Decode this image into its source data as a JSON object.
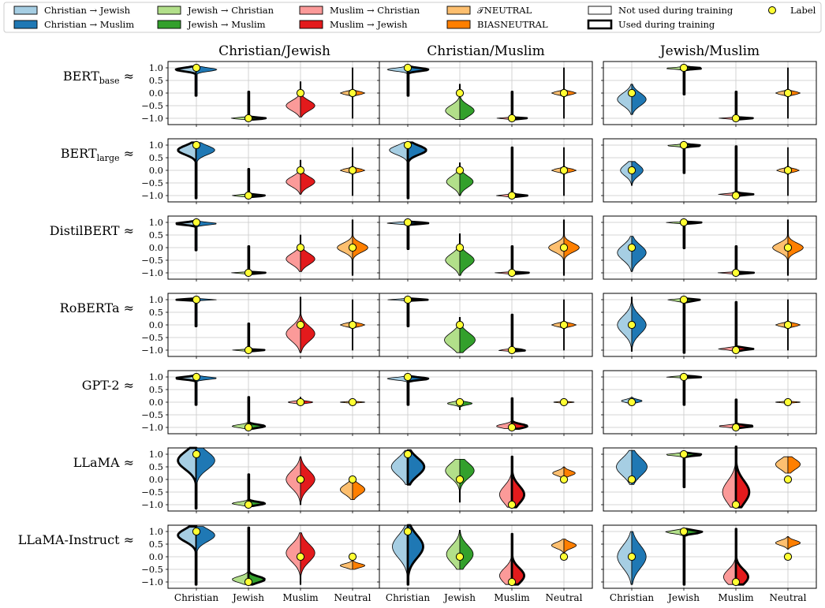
{
  "legend": {
    "entries": [
      {
        "key": "cj",
        "label": "Christian → Jewish",
        "color": "#a6cee3",
        "kind": "patch"
      },
      {
        "key": "cm",
        "label": "Christian → Muslim",
        "color": "#1f78b4",
        "kind": "patch"
      },
      {
        "key": "jc",
        "label": "Jewish → Christian",
        "color": "#b2df8a",
        "kind": "patch"
      },
      {
        "key": "jm",
        "label": "Jewish → Muslim",
        "color": "#33a02c",
        "kind": "patch"
      },
      {
        "key": "mc",
        "label": "Muslim → Christian",
        "color": "#fb9a99",
        "kind": "patch"
      },
      {
        "key": "mj",
        "label": "Muslim → Jewish",
        "color": "#e31a1c",
        "kind": "patch"
      },
      {
        "key": "tn",
        "label": "𝒯NEUTRAL",
        "color": "#fdbf6f",
        "kind": "patch"
      },
      {
        "key": "bn",
        "label": "BIASNEUTRAL",
        "color": "#ff7f00",
        "kind": "patch"
      },
      {
        "key": "nu",
        "label": "Not used during training",
        "color": "#ffffff",
        "kind": "outline-thin"
      },
      {
        "key": "ud",
        "label": "Used during training",
        "color": "#ffffff",
        "kind": "outline-thick"
      },
      {
        "key": "lb",
        "label": "Label",
        "color": "#ffff33",
        "kind": "dot"
      }
    ]
  },
  "chart_data": {
    "type": "violin",
    "columns": [
      "Christian/Jewish",
      "Christian/Muslim",
      "Jewish/Muslim"
    ],
    "rows": [
      "BERT_base",
      "BERT_large",
      "DistilBERT",
      "RoBERTa",
      "GPT-2",
      "LLaMA",
      "LLaMA-Instruct"
    ],
    "row_label_suffix": "≈",
    "y_ticks": [
      1.0,
      0.5,
      0.0,
      -0.5,
      -1.0
    ],
    "y_tick_labels": [
      "1.0",
      "0.5",
      "0.0",
      "−0.5",
      "−1.0"
    ],
    "ylim": [
      -1.25,
      1.25
    ],
    "x_categories": [
      "Christian",
      "Jewish",
      "Muslim",
      "Neutral"
    ],
    "grid": true,
    "label_values": {
      "Christian/Jewish": [
        1,
        -1,
        0,
        0
      ],
      "Christian/Muslim": [
        1,
        0,
        -1,
        0
      ],
      "Jewish/Muslim": [
        0,
        1,
        -1,
        0
      ]
    },
    "colors": {
      "cj": "#a6cee3",
      "cm": "#1f78b4",
      "jc": "#b2df8a",
      "jm": "#33a02c",
      "mc": "#fb9a99",
      "mj": "#e31a1c",
      "tn": "#fdbf6f",
      "bn": "#ff7f00"
    },
    "category_halves": {
      "Christian/Jewish": [
        [
          "cj",
          "cm"
        ],
        [
          "jc",
          "jm"
        ],
        [
          "mc",
          "mj"
        ],
        [
          "tn",
          "bn"
        ]
      ],
      "Christian/Muslim": [
        [
          "cj",
          "cm"
        ],
        [
          "jc",
          "jm"
        ],
        [
          "mc",
          "mj"
        ],
        [
          "tn",
          "bn"
        ]
      ],
      "Jewish/Muslim": [
        [
          "cj",
          "cm"
        ],
        [
          "jc",
          "jm"
        ],
        [
          "mc",
          "mj"
        ],
        [
          "tn",
          "bn"
        ]
      ]
    },
    "used_half": {
      "Christian/Jewish": [
        "left",
        "right",
        "",
        ""
      ],
      "Christian/Muslim": [
        "right",
        "",
        "right",
        ""
      ],
      "Jewish/Muslim": [
        "",
        "right",
        "right",
        ""
      ]
    },
    "violins": {
      "BERT_base": {
        "Christian/Jewish": [
          {
            "center": 0.93,
            "spread": 0.07,
            "min": -0.1,
            "max": 1.05,
            "width": 1.0
          },
          {
            "center": -1.0,
            "spread": 0.03,
            "min": -1.05,
            "max": 0.05,
            "width": 0.85
          },
          {
            "center": -0.5,
            "spread": 0.2,
            "min": -0.95,
            "max": 0.45,
            "width": 0.7
          },
          {
            "center": 0.0,
            "spread": 0.06,
            "min": -1.0,
            "max": 1.0,
            "width": 0.6
          }
        ],
        "Christian/Muslim": [
          {
            "center": 0.93,
            "spread": 0.06,
            "min": -0.1,
            "max": 1.05,
            "width": 1.0
          },
          {
            "center": -0.7,
            "spread": 0.22,
            "min": -1.05,
            "max": 0.35,
            "width": 0.7
          },
          {
            "center": -1.0,
            "spread": 0.02,
            "min": -1.05,
            "max": 0.05,
            "width": 0.75
          },
          {
            "center": 0.0,
            "spread": 0.06,
            "min": -1.0,
            "max": 1.0,
            "width": 0.6
          }
        ],
        "Jewish/Muslim": [
          {
            "center": -0.25,
            "spread": 0.25,
            "min": -0.85,
            "max": 0.35,
            "width": 0.7
          },
          {
            "center": 0.98,
            "spread": 0.03,
            "min": -0.05,
            "max": 1.05,
            "width": 0.9
          },
          {
            "center": -1.0,
            "spread": 0.02,
            "min": -1.05,
            "max": 0.05,
            "width": 0.85
          },
          {
            "center": 0.0,
            "spread": 0.06,
            "min": -1.0,
            "max": 1.0,
            "width": 0.6
          }
        ]
      },
      "BERT_large": {
        "Christian/Jewish": [
          {
            "center": 0.8,
            "spread": 0.18,
            "min": -1.1,
            "max": 1.1,
            "width": 0.9
          },
          {
            "center": -1.0,
            "spread": 0.03,
            "min": -1.05,
            "max": 0.05,
            "width": 0.8
          },
          {
            "center": -0.45,
            "spread": 0.2,
            "min": -0.95,
            "max": 0.4,
            "width": 0.7
          },
          {
            "center": 0.0,
            "spread": 0.06,
            "min": -1.0,
            "max": 0.9,
            "width": 0.6
          }
        ],
        "Christian/Muslim": [
          {
            "center": 0.8,
            "spread": 0.18,
            "min": -1.1,
            "max": 1.1,
            "width": 0.9
          },
          {
            "center": -0.45,
            "spread": 0.22,
            "min": -1.0,
            "max": 0.3,
            "width": 0.65
          },
          {
            "center": -1.0,
            "spread": 0.03,
            "min": -1.05,
            "max": 0.9,
            "width": 0.75
          },
          {
            "center": 0.0,
            "spread": 0.06,
            "min": -1.0,
            "max": 0.9,
            "width": 0.6
          }
        ],
        "Jewish/Muslim": [
          {
            "center": 0.0,
            "spread": 0.22,
            "min": -0.6,
            "max": 0.35,
            "width": 0.55
          },
          {
            "center": 0.98,
            "spread": 0.03,
            "min": -0.1,
            "max": 1.05,
            "width": 0.85
          },
          {
            "center": -0.95,
            "spread": 0.03,
            "min": -1.05,
            "max": 0.95,
            "width": 0.85
          },
          {
            "center": 0.0,
            "spread": 0.06,
            "min": -1.0,
            "max": 0.9,
            "width": 0.55
          }
        ]
      },
      "DistilBERT": {
        "Christian/Jewish": [
          {
            "center": 0.95,
            "spread": 0.05,
            "min": -0.1,
            "max": 1.05,
            "width": 1.0
          },
          {
            "center": -1.0,
            "spread": 0.02,
            "min": -1.05,
            "max": 0.05,
            "width": 0.85
          },
          {
            "center": -0.45,
            "spread": 0.22,
            "min": -0.95,
            "max": 0.5,
            "width": 0.7
          },
          {
            "center": 0.0,
            "spread": 0.18,
            "min": -1.1,
            "max": 1.1,
            "width": 0.75
          }
        ],
        "Christian/Muslim": [
          {
            "center": 0.97,
            "spread": 0.03,
            "min": -0.05,
            "max": 1.05,
            "width": 1.0
          },
          {
            "center": -0.5,
            "spread": 0.25,
            "min": -1.1,
            "max": 0.55,
            "width": 0.7
          },
          {
            "center": -1.0,
            "spread": 0.02,
            "min": -1.05,
            "max": 0.05,
            "width": 0.85
          },
          {
            "center": 0.0,
            "spread": 0.18,
            "min": -1.1,
            "max": 1.1,
            "width": 0.75
          }
        ],
        "Jewish/Muslim": [
          {
            "center": -0.2,
            "spread": 0.3,
            "min": -0.95,
            "max": 0.45,
            "width": 0.7
          },
          {
            "center": 0.99,
            "spread": 0.02,
            "min": -0.02,
            "max": 1.05,
            "width": 0.9
          },
          {
            "center": -1.0,
            "spread": 0.02,
            "min": -1.05,
            "max": 0.05,
            "width": 0.9
          },
          {
            "center": 0.0,
            "spread": 0.18,
            "min": -1.1,
            "max": 1.1,
            "width": 0.75
          }
        ]
      },
      "RoBERTa": {
        "Christian/Jewish": [
          {
            "center": 1.0,
            "spread": 0.02,
            "min": -0.05,
            "max": 1.05,
            "width": 1.0
          },
          {
            "center": -1.0,
            "spread": 0.02,
            "min": -1.05,
            "max": 0.05,
            "width": 0.8
          },
          {
            "center": -0.35,
            "spread": 0.3,
            "min": -1.1,
            "max": 1.1,
            "width": 0.7
          },
          {
            "center": 0.0,
            "spread": 0.06,
            "min": -1.0,
            "max": 1.0,
            "width": 0.6
          }
        ],
        "Christian/Muslim": [
          {
            "center": 1.0,
            "spread": 0.02,
            "min": -0.05,
            "max": 1.05,
            "width": 1.0
          },
          {
            "center": -0.6,
            "spread": 0.28,
            "min": -1.1,
            "max": 0.3,
            "width": 0.75
          },
          {
            "center": -1.0,
            "spread": 0.02,
            "min": -1.05,
            "max": 0.4,
            "width": 0.8
          },
          {
            "center": 0.0,
            "spread": 0.06,
            "min": -1.0,
            "max": 1.0,
            "width": 0.6
          }
        ],
        "Jewish/Muslim": [
          {
            "center": 0.0,
            "spread": 0.35,
            "min": -1.05,
            "max": 1.1,
            "width": 0.7
          },
          {
            "center": 0.98,
            "spread": 0.03,
            "min": -1.1,
            "max": 1.05,
            "width": 0.9
          },
          {
            "center": -0.95,
            "spread": 0.04,
            "min": -1.05,
            "max": 0.9,
            "width": 0.85
          },
          {
            "center": 0.0,
            "spread": 0.06,
            "min": -1.0,
            "max": 1.0,
            "width": 0.6
          }
        ]
      },
      "GPT-2": {
        "Christian/Jewish": [
          {
            "center": 0.95,
            "spread": 0.05,
            "min": -0.1,
            "max": 1.05,
            "width": 1.0
          },
          {
            "center": -0.95,
            "spread": 0.06,
            "min": -1.05,
            "max": 0.2,
            "width": 0.8
          },
          {
            "center": 0.0,
            "spread": 0.04,
            "min": -0.1,
            "max": 0.2,
            "width": 0.6
          },
          {
            "center": 0.0,
            "spread": 0.02,
            "min": -0.05,
            "max": 0.05,
            "width": 0.6
          }
        ],
        "Christian/Muslim": [
          {
            "center": 0.93,
            "spread": 0.05,
            "min": -0.1,
            "max": 1.05,
            "width": 1.0
          },
          {
            "center": -0.05,
            "spread": 0.06,
            "min": -0.3,
            "max": 0.1,
            "width": 0.6
          },
          {
            "center": -0.95,
            "spread": 0.08,
            "min": -1.05,
            "max": 0.15,
            "width": 0.75
          },
          {
            "center": 0.0,
            "spread": 0.02,
            "min": -0.05,
            "max": 0.05,
            "width": 0.5
          }
        ],
        "Jewish/Muslim": [
          {
            "center": 0.05,
            "spread": 0.06,
            "min": -0.1,
            "max": 0.2,
            "width": 0.5
          },
          {
            "center": 1.0,
            "spread": 0.02,
            "min": -0.1,
            "max": 1.05,
            "width": 0.9
          },
          {
            "center": -0.95,
            "spread": 0.04,
            "min": -1.05,
            "max": 0.1,
            "width": 0.85
          },
          {
            "center": 0.0,
            "spread": 0.02,
            "min": -0.05,
            "max": 0.05,
            "width": 0.6
          }
        ]
      },
      "LLaMA": {
        "Christian/Jewish": [
          {
            "center": 0.75,
            "spread": 0.35,
            "min": -1.15,
            "max": 1.25,
            "width": 0.9
          },
          {
            "center": -0.95,
            "spread": 0.06,
            "min": -1.05,
            "max": 0.2,
            "width": 0.8
          },
          {
            "center": 0.0,
            "spread": 0.35,
            "min": -1.0,
            "max": 0.9,
            "width": 0.7
          },
          {
            "center": -0.4,
            "spread": 0.2,
            "min": -0.8,
            "max": 0.0,
            "width": 0.6
          }
        ],
        "Christian/Muslim": [
          {
            "center": 0.5,
            "spread": 0.35,
            "min": -0.2,
            "max": 1.15,
            "width": 0.8
          },
          {
            "center": 0.35,
            "spread": 0.3,
            "min": -0.9,
            "max": 0.8,
            "width": 0.7
          },
          {
            "center": -0.6,
            "spread": 0.35,
            "min": -1.1,
            "max": 0.9,
            "width": 0.6
          },
          {
            "center": 0.25,
            "spread": 0.1,
            "min": 0.0,
            "max": 0.5,
            "width": 0.55
          }
        ],
        "Jewish/Muslim": [
          {
            "center": 0.5,
            "spread": 0.35,
            "min": -0.2,
            "max": 1.15,
            "width": 0.75
          },
          {
            "center": 0.98,
            "spread": 0.04,
            "min": -0.3,
            "max": 1.1,
            "width": 0.9
          },
          {
            "center": -0.5,
            "spread": 0.45,
            "min": -1.1,
            "max": 1.3,
            "width": 0.65
          },
          {
            "center": 0.6,
            "spread": 0.2,
            "min": 0.25,
            "max": 0.9,
            "width": 0.6
          }
        ]
      },
      "LLaMA-Instruct": {
        "Christian/Jewish": [
          {
            "center": 0.85,
            "spread": 0.25,
            "min": -1.1,
            "max": 1.2,
            "width": 0.9
          },
          {
            "center": -0.9,
            "spread": 0.12,
            "min": -1.1,
            "max": 1.15,
            "width": 0.8
          },
          {
            "center": 0.15,
            "spread": 0.35,
            "min": -1.1,
            "max": 0.95,
            "width": 0.7
          },
          {
            "center": -0.35,
            "spread": 0.08,
            "min": -0.5,
            "max": 0.05,
            "width": 0.6
          }
        ],
        "Christian/Muslim": [
          {
            "center": 0.4,
            "spread": 0.45,
            "min": -1.1,
            "max": 1.25,
            "width": 0.75
          },
          {
            "center": 0.1,
            "spread": 0.35,
            "min": -0.5,
            "max": 1.05,
            "width": 0.65
          },
          {
            "center": -0.75,
            "spread": 0.3,
            "min": -1.1,
            "max": 0.9,
            "width": 0.6
          },
          {
            "center": 0.45,
            "spread": 0.12,
            "min": 0.1,
            "max": 0.7,
            "width": 0.6
          }
        ],
        "Jewish/Muslim": [
          {
            "center": 0.0,
            "spread": 0.45,
            "min": -1.1,
            "max": 1.0,
            "width": 0.7
          },
          {
            "center": 0.98,
            "spread": 0.06,
            "min": -1.1,
            "max": 1.1,
            "width": 0.9
          },
          {
            "center": -0.8,
            "spread": 0.3,
            "min": -1.1,
            "max": 1.1,
            "width": 0.6
          },
          {
            "center": 0.55,
            "spread": 0.1,
            "min": 0.3,
            "max": 0.8,
            "width": 0.6
          }
        ]
      }
    }
  }
}
